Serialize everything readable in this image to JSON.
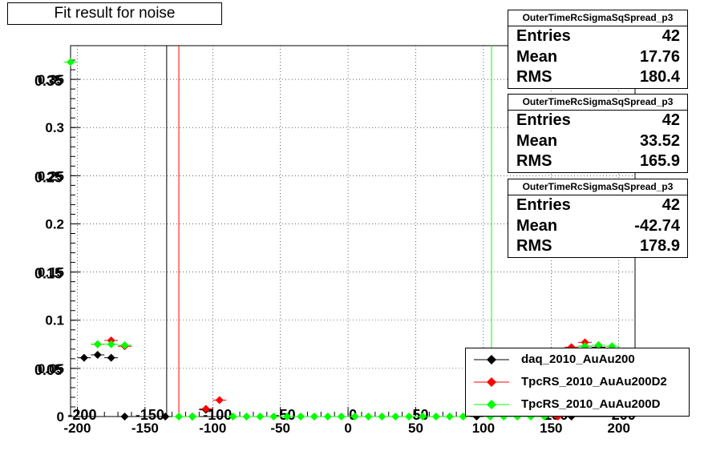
{
  "title": "Fit result for noise",
  "chart_data": {
    "type": "scatter",
    "title": "Fit result for noise",
    "xlabel": "",
    "ylabel": "",
    "xlim": [
      -205,
      212
    ],
    "ylim": [
      0,
      0.385
    ],
    "xticks": [
      -200,
      -150,
      -100,
      -50,
      0,
      50,
      100,
      150,
      200
    ],
    "yticks": [
      0,
      0.05,
      0.1,
      0.15,
      0.2,
      0.25,
      0.3,
      0.35
    ],
    "ytick_labels": [
      "0",
      "0.05",
      "0.1",
      "0.15",
      "0.2",
      "0.25",
      "0.3",
      "0.35"
    ],
    "xtick_labels": [
      "-200",
      "-150",
      "-100",
      "-50",
      "0",
      "50",
      "100",
      "150",
      "200"
    ],
    "overlay_labels": [
      {
        "text": "-200",
        "x": -200
      },
      {
        "text": "-150",
        "x": -150
      },
      {
        "text": "-100",
        "x": -100
      },
      {
        "text": "-50",
        "x": -50
      },
      {
        "text": "0",
        "x": 0
      },
      {
        "text": "50",
        "x": 50
      },
      {
        "text": "150",
        "x": 150
      },
      {
        "text": "200",
        "x": 200
      }
    ],
    "overlay_y_labels": [
      {
        "text": "0.35",
        "y": 0.35
      },
      {
        "text": "0.25",
        "y": 0.25
      },
      {
        "text": "0.15",
        "y": 0.15
      },
      {
        "text": "0.05",
        "y": 0.05
      }
    ],
    "grid": true,
    "bin_halfwidth": 5,
    "series": [
      {
        "name": "daq_2010_AuAu200",
        "color": "#000000",
        "mean_line_x": -134,
        "points": [
          {
            "x": -195,
            "y": 0.061
          },
          {
            "x": -185,
            "y": 0.064
          },
          {
            "x": -175,
            "y": 0.061
          },
          {
            "x": -165,
            "y": 0.0
          },
          {
            "x": -135,
            "y": 0.0
          },
          {
            "x": -115,
            "y": 0.0
          },
          {
            "x": -105,
            "y": 0.007
          },
          {
            "x": 95,
            "y": 0.0
          },
          {
            "x": 165,
            "y": 0.0
          },
          {
            "x": 175,
            "y": 0.073
          },
          {
            "x": 185,
            "y": 0.072
          }
        ]
      },
      {
        "name": "TpcRS_2010_AuAu200D2",
        "color": "#ff0000",
        "mean_line_x": -125,
        "points": [
          {
            "x": -185,
            "y": 0.075
          },
          {
            "x": -175,
            "y": 0.079
          },
          {
            "x": -165,
            "y": 0.073
          },
          {
            "x": -105,
            "y": 0.008
          },
          {
            "x": -95,
            "y": 0.017
          },
          {
            "x": 155,
            "y": 0.0
          },
          {
            "x": 165,
            "y": 0.072
          },
          {
            "x": 175,
            "y": 0.077
          },
          {
            "x": 185,
            "y": 0.074
          }
        ]
      },
      {
        "name": "TpcRS_2010_AuAu200D",
        "color": "#00ff00",
        "mean_line_x": 106,
        "points": [
          {
            "x": -205,
            "y": 0.368
          },
          {
            "x": -185,
            "y": 0.075
          },
          {
            "x": -175,
            "y": 0.075
          },
          {
            "x": -165,
            "y": 0.074
          },
          {
            "x": -125,
            "y": 0.0
          },
          {
            "x": -115,
            "y": 0.0
          },
          {
            "x": -85,
            "y": 0.0
          },
          {
            "x": -75,
            "y": 0.0
          },
          {
            "x": -65,
            "y": 0.0
          },
          {
            "x": -55,
            "y": 0.0
          },
          {
            "x": -45,
            "y": 0.0
          },
          {
            "x": -35,
            "y": 0.0
          },
          {
            "x": -25,
            "y": 0.0
          },
          {
            "x": -15,
            "y": 0.0
          },
          {
            "x": -5,
            "y": 0.0
          },
          {
            "x": 5,
            "y": 0.0
          },
          {
            "x": 15,
            "y": 0.0
          },
          {
            "x": 25,
            "y": 0.0
          },
          {
            "x": 35,
            "y": 0.0
          },
          {
            "x": 45,
            "y": 0.0
          },
          {
            "x": 55,
            "y": 0.0
          },
          {
            "x": 65,
            "y": 0.0
          },
          {
            "x": 75,
            "y": 0.0
          },
          {
            "x": 85,
            "y": 0.0
          },
          {
            "x": 105,
            "y": 0.0
          },
          {
            "x": 115,
            "y": 0.0
          },
          {
            "x": 125,
            "y": 0.0
          },
          {
            "x": 135,
            "y": 0.0
          },
          {
            "x": 145,
            "y": 0.0
          },
          {
            "x": 175,
            "y": 0.073
          },
          {
            "x": 185,
            "y": 0.074
          },
          {
            "x": 195,
            "y": 0.073
          }
        ]
      }
    ]
  },
  "stats_boxes": [
    {
      "name": "OuterTimeRcSigmaSqSpread_p3",
      "entries_label": "Entries",
      "entries": "42",
      "mean_label": "Mean",
      "mean": "17.76",
      "rms_label": "RMS",
      "rms": "180.4"
    },
    {
      "name": "OuterTimeRcSigmaSqSpread_p3",
      "entries_label": "Entries",
      "entries": "42",
      "mean_label": "Mean",
      "mean": "33.52",
      "rms_label": "RMS",
      "rms": "165.9"
    },
    {
      "name": "OuterTimeRcSigmaSqSpread_p3",
      "entries_label": "Entries",
      "entries": "42",
      "mean_label": "Mean",
      "mean": "-42.74",
      "rms_label": "RMS",
      "rms": "178.9"
    }
  ],
  "legend": {
    "placement": "bottom-right",
    "items": [
      {
        "label": "daq_2010_AuAu200",
        "color": "#000000"
      },
      {
        "label": "TpcRS_2010_AuAu200D2",
        "color": "#ff0000"
      },
      {
        "label": "TpcRS_2010_AuAu200D",
        "color": "#00ff00"
      }
    ]
  }
}
